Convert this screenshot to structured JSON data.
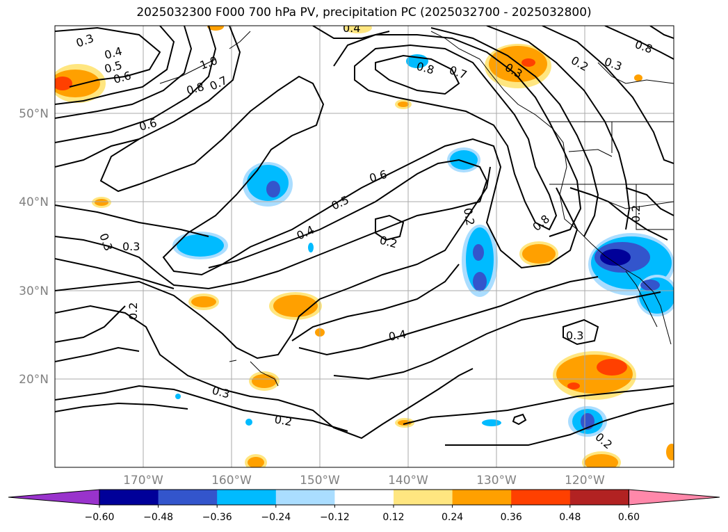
{
  "title": "2025032300 F000 700 hPa PV, precipitation PC (2025032700 - 2025032800)",
  "lat_labels": [
    "50°N",
    "40°N",
    "30°N",
    "20°N"
  ],
  "lon_labels": [
    "170°W",
    "160°W",
    "150°W",
    "140°W",
    "130°W",
    "120°W"
  ],
  "contour_labels": [
    "0.3",
    "0.4",
    "0.5",
    "0.6",
    "1.0",
    "0.8",
    "0.7",
    "0.4",
    "0.8",
    "0.7",
    "0.3",
    "0.2",
    "0.3",
    "0.8",
    "0.6",
    "0.6",
    "0.5",
    "0.4",
    "0.2",
    "0.2",
    "0.8",
    "0.2",
    "0.3",
    "0.3",
    "0.2",
    "0.4",
    "0.3",
    "0.3",
    "0.2",
    "0.2"
  ],
  "colorbar": {
    "colors": [
      "#9933cc",
      "#000099",
      "#3355cc",
      "#00bbff",
      "#aaddff",
      "#ffffff",
      "#ffe680",
      "#ffa000",
      "#ff4000",
      "#b22222",
      "#ff88aa"
    ],
    "tick_labels": [
      "−0.60",
      "−0.48",
      "−0.36",
      "−0.24",
      "−0.12",
      "0.12",
      "0.24",
      "0.36",
      "0.48",
      "0.60"
    ]
  }
}
